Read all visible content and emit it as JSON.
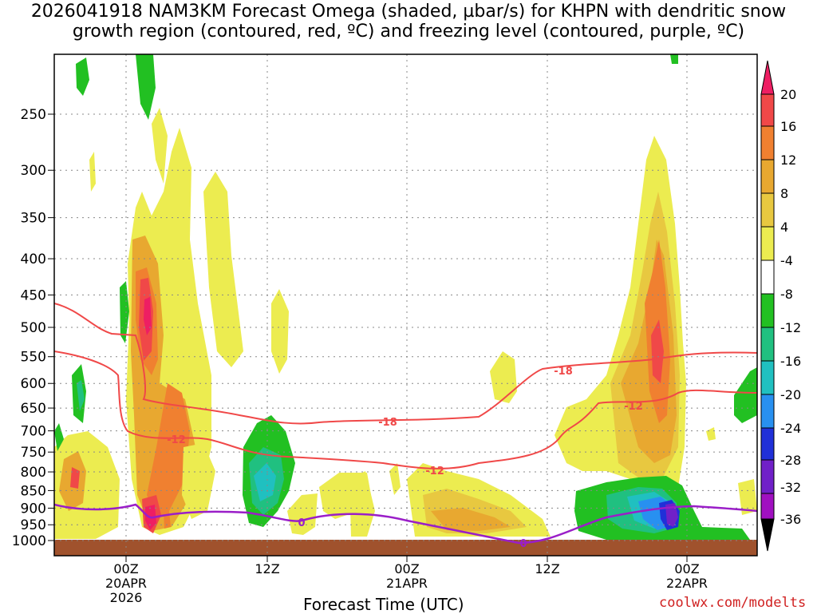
{
  "title_line1": "2026041918 NAM3KM Forecast Omega (shaded, µbar/s) for KHPN with dendritic snow",
  "title_line2": "growth region (contoured, red, ºC) and freezing level (contoured, purple, ºC)",
  "xlabel": "Forecast Time (UTC)",
  "credit": "coolwx.com/modelts",
  "chart_data": {
    "type": "heatmap",
    "title": "2026041918 NAM3KM Forecast Omega (shaded, µbar/s) for KHPN with dendritic snow growth region (contoured, red, ºC) and freezing level (contoured, purple, ºC)",
    "xlabel": "Forecast Time (UTC)",
    "ylabel": "",
    "y_axis": {
      "scale": "log-pressure",
      "reversed": true,
      "ticks": [
        250,
        300,
        350,
        400,
        450,
        500,
        550,
        600,
        650,
        700,
        750,
        800,
        850,
        900,
        950,
        1000
      ]
    },
    "x_axis": {
      "tick_labels": [
        {
          "lines": [
            "00Z",
            "20APR",
            "2026"
          ]
        },
        {
          "lines": [
            "12Z"
          ]
        },
        {
          "lines": [
            "00Z",
            "21APR"
          ]
        },
        {
          "lines": [
            "12Z"
          ]
        },
        {
          "lines": [
            "00Z",
            "22APR"
          ]
        }
      ]
    },
    "grid": true,
    "colorbar": {
      "labels": [
        "20",
        "16",
        "12",
        "8",
        "4",
        "-4",
        "-8",
        "-12",
        "-16",
        "-20",
        "-24",
        "-28",
        "-32",
        "-36"
      ],
      "colors": [
        "#ee1e63",
        "#f04848",
        "#f08030",
        "#e8a830",
        "#e8c840",
        "#ecec50",
        "#ffffff",
        "#22c022",
        "#20c080",
        "#20c0c0",
        "#2890f0",
        "#2030d8",
        "#7020c8",
        "#a010c0",
        "#a0a0a0",
        "#000000"
      ]
    },
    "contour_labels": {
      "dgz": [
        "-18",
        "-12",
        "-18",
        "-12",
        "-12"
      ],
      "freezing": [
        "0",
        "0"
      ]
    },
    "colors": {
      "dgz": "#f04848",
      "freezing": "#9a1ec8",
      "ground": "#a0522d"
    }
  }
}
